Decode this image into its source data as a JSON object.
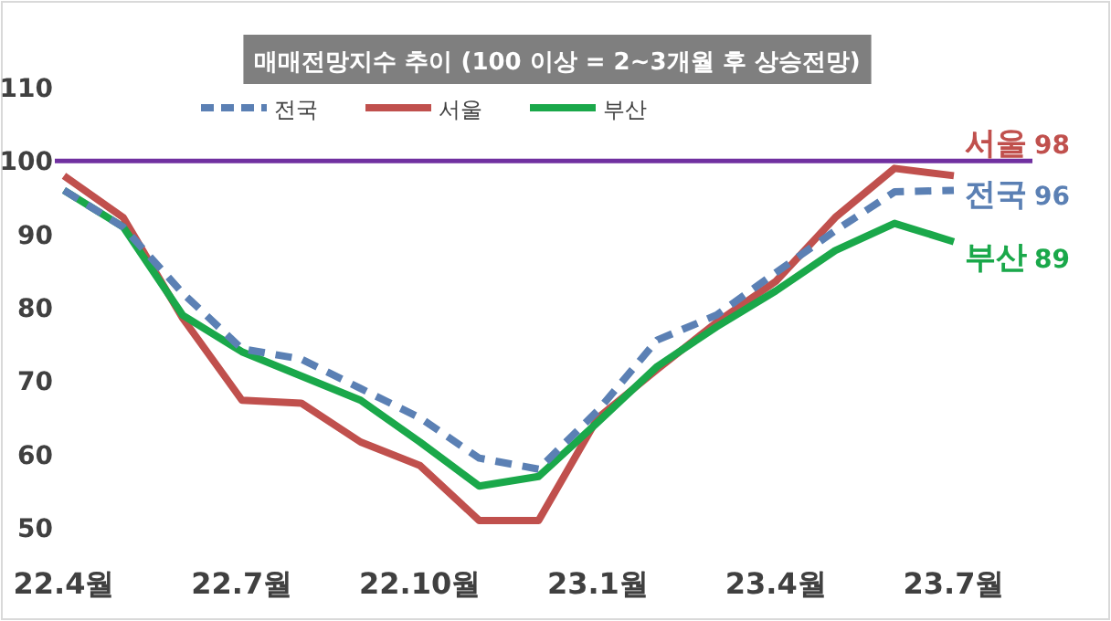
{
  "chart_data": {
    "type": "line",
    "title": "매매전망지수 추이 (100 이상 = 2~3개월 후 상승전망)",
    "categories": [
      "22.4월",
      null,
      null,
      "22.7월",
      null,
      null,
      "22.10월",
      null,
      null,
      "23.1월",
      null,
      null,
      "23.4월",
      null,
      null,
      "23.7월"
    ],
    "series": [
      {
        "name": "전국",
        "color": "#5b80b4",
        "line_style": "dashed",
        "values": [
          96,
          91,
          82,
          74.4,
          73,
          69,
          65,
          59.5,
          58,
          66,
          75.6,
          79,
          84.8,
          90.5,
          95.8,
          96
        ]
      },
      {
        "name": "서울",
        "color": "#c0504d",
        "line_style": "solid",
        "values": [
          98,
          92.3,
          78.6,
          67.4,
          67,
          61.7,
          58.5,
          51,
          51,
          65,
          71.6,
          78,
          83.6,
          92.3,
          99,
          98
        ]
      },
      {
        "name": "부산",
        "color": "#1aa84a",
        "line_style": "solid",
        "values": [
          96,
          91,
          79,
          74,
          70.7,
          67.4,
          61.7,
          55.7,
          57,
          64.4,
          72,
          77.4,
          82.3,
          87.8,
          91.5,
          89
        ]
      }
    ],
    "ylim": [
      50,
      110
    ],
    "yticks": [
      50,
      60,
      70,
      80,
      90,
      100,
      110
    ],
    "grid": false,
    "legend": "top",
    "marker": "none",
    "ref_lines": [
      {
        "axis": "y",
        "value": 100,
        "color": "#7030a0"
      }
    ],
    "annotations": [
      {
        "text": "전국 96",
        "x": "23.7월",
        "y": 96
      },
      {
        "text": "서울 98",
        "x": "23.7월",
        "y": 98
      },
      {
        "text": "부산 89",
        "x": "23.7월",
        "y": 89
      }
    ]
  }
}
